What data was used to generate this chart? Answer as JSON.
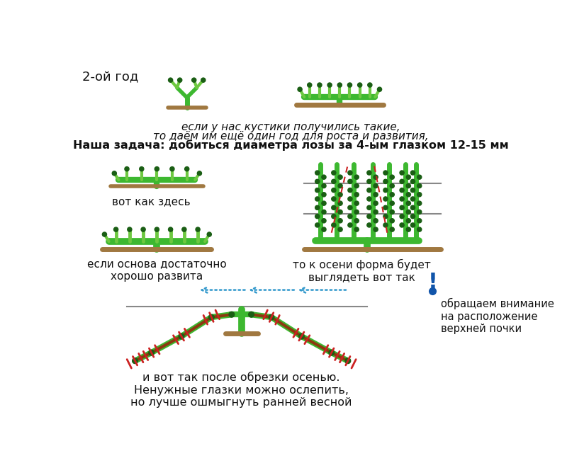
{
  "bg_color": "#ffffff",
  "vine_green": "#3db830",
  "vine_dark": "#2a7a25",
  "vine_light": "#6dc840",
  "trunk_brown": "#a07840",
  "wire_gray": "#888888",
  "bud_dark": "#1a5e14",
  "red_dash": "#cc2222",
  "blue_arrow": "#3399cc",
  "blue_dark": "#1155aa",
  "text_color": "#111111",
  "title_text": "2-ой год",
  "text1": "если у нас кустики получились такие,",
  "text2": "то даём им ещё один год для роста и развития,",
  "text3": "Наша задача: добиться диаметра лозы за 4-ым глазком 12-15 мм",
  "text4": "вот как здесь",
  "text5": "если основа достаточно\nхорошо развита",
  "text6": "то к осени форма будет\nвыглядеть вот так",
  "text7": "обращаем внимание\nна расположение\nверхней почки",
  "text8": "и вот так после обрезки осенью.\nНенужные глазки можно ослепить,\nно лучше ошмыгнуть ранней весной"
}
